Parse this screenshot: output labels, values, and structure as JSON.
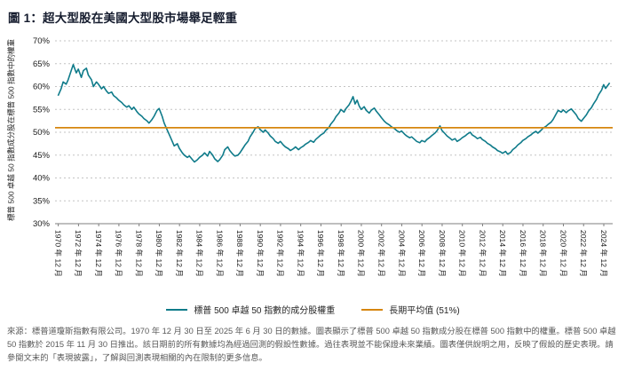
{
  "title": "圖 1：超大型股在美國大型股市場舉足輕重",
  "footer": "來源：標普道瓊斯指數有限公司。1970 年 12 月 30 日至 2025 年 6 月 30 日的數據。圖表顯示了標普 500 卓越 50 指數成分股在標普 500 指數中的權重。標普 500 卓越 50 指數於 2015 年 11 月 30 日推出。該日期前的所有數據均為經過回測的假設性數據。過往表現並不能保證未來業績。圖表僅供說明之用，反映了假設的歷史表現。請參閱文末的「表現披露」，了解與回測表現相關的內在限制的更多信息。",
  "chart_data": {
    "type": "line",
    "title": "圖 1：超大型股在美國大型股市場舉足輕重",
    "xlabel": "",
    "ylabel": "標普 500 卓越 50 指數成分股在標普 500 指數中的權重",
    "ylim": [
      30,
      70
    ],
    "xlim": [
      1970.6,
      2025.8
    ],
    "y_ticks": [
      30,
      35,
      40,
      45,
      50,
      55,
      60,
      65,
      70
    ],
    "y_tick_suffix": "%",
    "grid": "horizontal-dotted",
    "legend_position": "bottom",
    "x_tick_labels": [
      "1970 年 12 月",
      "1972 年 12 月",
      "1974 年 12 月",
      "1976 年 12 月",
      "1978 年 12 月",
      "1980 年 12 月",
      "1982 年 12 月",
      "1984 年 12 月",
      "1986 年 12 月",
      "1988 年 12 月",
      "1990 年 12 月",
      "1992 年 12 月",
      "1994 年 12 月",
      "1996 年 12 月",
      "1998 年 12 月",
      "2000 年 12 月",
      "2002 年 12 月",
      "2004 年 12 月",
      "2006 年 12 月",
      "2008 年 12 月",
      "2010 年 12 月",
      "2012 年 12 月",
      "2014 年 12 月",
      "2016 年 12 月",
      "2018 年 12 月",
      "2020 年 12 月",
      "2022 年 12 月",
      "2024 年 12 月"
    ],
    "series": [
      {
        "name": "標普 500 卓越 50 指數的成分股權重",
        "color": "#0f7b8a",
        "points": [
          [
            1970.9,
            58
          ],
          [
            1971.2,
            59.5
          ],
          [
            1971.4,
            61
          ],
          [
            1971.7,
            60.5
          ],
          [
            1971.9,
            61.5
          ],
          [
            1972.2,
            63.5
          ],
          [
            1972.4,
            64.8
          ],
          [
            1972.7,
            63
          ],
          [
            1972.9,
            63.8
          ],
          [
            1973.2,
            62
          ],
          [
            1973.4,
            63.5
          ],
          [
            1973.7,
            64
          ],
          [
            1973.9,
            62.5
          ],
          [
            1974.2,
            61.5
          ],
          [
            1974.4,
            60
          ],
          [
            1974.7,
            61
          ],
          [
            1974.9,
            60.5
          ],
          [
            1975.2,
            59.5
          ],
          [
            1975.4,
            60
          ],
          [
            1975.7,
            59
          ],
          [
            1975.9,
            58.5
          ],
          [
            1976.2,
            58.8
          ],
          [
            1976.4,
            58
          ],
          [
            1976.7,
            57.5
          ],
          [
            1976.9,
            57
          ],
          [
            1977.2,
            56.5
          ],
          [
            1977.4,
            56
          ],
          [
            1977.7,
            55.5
          ],
          [
            1977.9,
            55.8
          ],
          [
            1978.2,
            55
          ],
          [
            1978.4,
            55.5
          ],
          [
            1978.7,
            54.5
          ],
          [
            1978.9,
            54
          ],
          [
            1979.2,
            53.5
          ],
          [
            1979.4,
            53
          ],
          [
            1979.7,
            52.5
          ],
          [
            1979.9,
            52
          ],
          [
            1980.2,
            52.8
          ],
          [
            1980.4,
            53.5
          ],
          [
            1980.7,
            54.8
          ],
          [
            1980.9,
            55.2
          ],
          [
            1981.2,
            53.5
          ],
          [
            1981.4,
            52
          ],
          [
            1981.7,
            50.5
          ],
          [
            1981.9,
            49.5
          ],
          [
            1982.2,
            48
          ],
          [
            1982.4,
            47
          ],
          [
            1982.7,
            47.5
          ],
          [
            1982.9,
            46.5
          ],
          [
            1983.2,
            45.5
          ],
          [
            1983.4,
            45
          ],
          [
            1983.7,
            44.5
          ],
          [
            1983.9,
            44.8
          ],
          [
            1984.2,
            44
          ],
          [
            1984.4,
            43.5
          ],
          [
            1984.7,
            44
          ],
          [
            1984.9,
            44.5
          ],
          [
            1985.2,
            45
          ],
          [
            1985.4,
            45.5
          ],
          [
            1985.7,
            44.8
          ],
          [
            1985.9,
            45.8
          ],
          [
            1986.2,
            45
          ],
          [
            1986.4,
            44.2
          ],
          [
            1986.7,
            43.6
          ],
          [
            1986.9,
            44
          ],
          [
            1987.2,
            45
          ],
          [
            1987.4,
            46.2
          ],
          [
            1987.7,
            46.8
          ],
          [
            1987.9,
            46
          ],
          [
            1988.2,
            45.2
          ],
          [
            1988.4,
            44.8
          ],
          [
            1988.7,
            45
          ],
          [
            1988.9,
            45.5
          ],
          [
            1989.2,
            46.5
          ],
          [
            1989.4,
            47.2
          ],
          [
            1989.7,
            48
          ],
          [
            1989.9,
            49
          ],
          [
            1990.2,
            50
          ],
          [
            1990.4,
            50.8
          ],
          [
            1990.7,
            51.2
          ],
          [
            1990.9,
            50.6
          ],
          [
            1991.2,
            50
          ],
          [
            1991.4,
            50.5
          ],
          [
            1991.7,
            49.8
          ],
          [
            1991.9,
            49.2
          ],
          [
            1992.2,
            48.6
          ],
          [
            1992.4,
            48
          ],
          [
            1992.7,
            47.6
          ],
          [
            1992.9,
            48
          ],
          [
            1993.2,
            47.2
          ],
          [
            1993.4,
            46.8
          ],
          [
            1993.7,
            46.4
          ],
          [
            1993.9,
            46
          ],
          [
            1994.2,
            46.4
          ],
          [
            1994.4,
            46.8
          ],
          [
            1994.7,
            46.2
          ],
          [
            1994.9,
            46.6
          ],
          [
            1995.2,
            47
          ],
          [
            1995.4,
            47.4
          ],
          [
            1995.7,
            47.8
          ],
          [
            1995.9,
            48.2
          ],
          [
            1996.2,
            47.8
          ],
          [
            1996.4,
            48.4
          ],
          [
            1996.7,
            49
          ],
          [
            1996.9,
            49.4
          ],
          [
            1997.2,
            49.8
          ],
          [
            1997.4,
            50.4
          ],
          [
            1997.7,
            51
          ],
          [
            1997.9,
            51.8
          ],
          [
            1998.2,
            52.6
          ],
          [
            1998.4,
            53.4
          ],
          [
            1998.7,
            54.2
          ],
          [
            1998.9,
            55
          ],
          [
            1999.2,
            54.4
          ],
          [
            1999.4,
            55.2
          ],
          [
            1999.7,
            56
          ],
          [
            1999.9,
            56.8
          ],
          [
            2000.1,
            57.8
          ],
          [
            2000.3,
            56.2
          ],
          [
            2000.5,
            57
          ],
          [
            2000.7,
            55.8
          ],
          [
            2000.9,
            55
          ],
          [
            2001.2,
            55.6
          ],
          [
            2001.4,
            54.8
          ],
          [
            2001.7,
            54.2
          ],
          [
            2001.9,
            54.8
          ],
          [
            2002.2,
            55.3
          ],
          [
            2002.4,
            54.6
          ],
          [
            2002.7,
            53.8
          ],
          [
            2002.9,
            53.2
          ],
          [
            2003.2,
            52.4
          ],
          [
            2003.4,
            52
          ],
          [
            2003.7,
            51.6
          ],
          [
            2003.9,
            51.2
          ],
          [
            2004.2,
            50.8
          ],
          [
            2004.4,
            50.4
          ],
          [
            2004.7,
            50
          ],
          [
            2004.9,
            50.3
          ],
          [
            2005.2,
            49.6
          ],
          [
            2005.4,
            49.2
          ],
          [
            2005.7,
            48.8
          ],
          [
            2005.9,
            49
          ],
          [
            2006.2,
            48.4
          ],
          [
            2006.4,
            48
          ],
          [
            2006.7,
            47.7
          ],
          [
            2006.9,
            48.2
          ],
          [
            2007.2,
            47.9
          ],
          [
            2007.4,
            48.4
          ],
          [
            2007.7,
            48.9
          ],
          [
            2007.9,
            49.3
          ],
          [
            2008.2,
            49.8
          ],
          [
            2008.4,
            50.3
          ],
          [
            2008.7,
            51.4
          ],
          [
            2008.9,
            50.4
          ],
          [
            2009.2,
            49.7
          ],
          [
            2009.4,
            49.2
          ],
          [
            2009.7,
            48.7
          ],
          [
            2009.9,
            48.3
          ],
          [
            2010.2,
            48.6
          ],
          [
            2010.4,
            48
          ],
          [
            2010.7,
            48.4
          ],
          [
            2010.9,
            48.8
          ],
          [
            2011.2,
            49.2
          ],
          [
            2011.4,
            49.6
          ],
          [
            2011.7,
            50
          ],
          [
            2011.9,
            49.4
          ],
          [
            2012.2,
            49
          ],
          [
            2012.4,
            48.6
          ],
          [
            2012.7,
            48.9
          ],
          [
            2012.9,
            48.4
          ],
          [
            2013.2,
            48
          ],
          [
            2013.4,
            47.6
          ],
          [
            2013.7,
            47.2
          ],
          [
            2013.9,
            46.8
          ],
          [
            2014.2,
            46.4
          ],
          [
            2014.4,
            46
          ],
          [
            2014.7,
            45.7
          ],
          [
            2014.9,
            45.4
          ],
          [
            2015.2,
            45.8
          ],
          [
            2015.4,
            45.2
          ],
          [
            2015.7,
            45.6
          ],
          [
            2015.9,
            46.2
          ],
          [
            2016.2,
            46.7
          ],
          [
            2016.4,
            47.2
          ],
          [
            2016.7,
            47.7
          ],
          [
            2016.9,
            48.2
          ],
          [
            2017.2,
            48.6
          ],
          [
            2017.4,
            49
          ],
          [
            2017.7,
            49.4
          ],
          [
            2017.9,
            49.8
          ],
          [
            2018.2,
            50.2
          ],
          [
            2018.4,
            49.8
          ],
          [
            2018.7,
            50.4
          ],
          [
            2018.9,
            50.9
          ],
          [
            2019.2,
            51.3
          ],
          [
            2019.4,
            51.7
          ],
          [
            2019.7,
            52.2
          ],
          [
            2019.9,
            52.8
          ],
          [
            2020.2,
            54
          ],
          [
            2020.4,
            54.8
          ],
          [
            2020.7,
            54.4
          ],
          [
            2020.9,
            54.9
          ],
          [
            2021.2,
            54.3
          ],
          [
            2021.4,
            54.7
          ],
          [
            2021.7,
            55.1
          ],
          [
            2021.9,
            54.6
          ],
          [
            2022.2,
            53.8
          ],
          [
            2022.4,
            53
          ],
          [
            2022.7,
            52.4
          ],
          [
            2022.9,
            53
          ],
          [
            2023.2,
            53.8
          ],
          [
            2023.4,
            54.6
          ],
          [
            2023.7,
            55.4
          ],
          [
            2023.9,
            56.2
          ],
          [
            2024.2,
            57.2
          ],
          [
            2024.4,
            58.2
          ],
          [
            2024.7,
            59.2
          ],
          [
            2024.9,
            60.4
          ],
          [
            2025.1,
            59.6
          ],
          [
            2025.3,
            60.2
          ],
          [
            2025.5,
            60.8
          ]
        ]
      },
      {
        "name": "長期平均值 (51%)",
        "color": "#d6860f",
        "value": 51
      }
    ]
  }
}
